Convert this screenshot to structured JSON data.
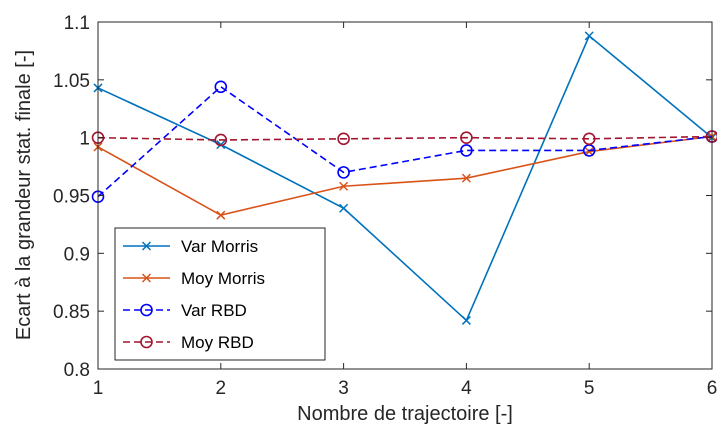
{
  "chart_data": {
    "type": "line",
    "xlabel": "Nombre de trajectoire [-]",
    "ylabel": "Ecart à la grandeur stat. finale [-]",
    "x": [
      1,
      2,
      3,
      4,
      5,
      6
    ],
    "xlim": [
      1,
      6
    ],
    "ylim": [
      0.8,
      1.1
    ],
    "xticks": [
      "1",
      "2",
      "3",
      "4",
      "5",
      "6"
    ],
    "yticks": [
      "0.8",
      "0.85",
      "0.9",
      "0.95",
      "1",
      "1.05",
      "1.1"
    ],
    "ytick_values": [
      0.8,
      0.85,
      0.9,
      0.95,
      1.0,
      1.05,
      1.1
    ],
    "grid": false,
    "legend_position": "bottom-left",
    "series": [
      {
        "name": "Var Morris",
        "values": [
          1.043,
          0.994,
          0.939,
          0.842,
          1.088,
          1.0
        ],
        "color": "#0072BD",
        "marker": "x",
        "dash": "solid"
      },
      {
        "name": "Moy Morris",
        "values": [
          0.992,
          0.933,
          0.958,
          0.965,
          0.988,
          1.001
        ],
        "color": "#D95319",
        "marker": "x",
        "dash": "solid"
      },
      {
        "name": "Var RBD",
        "values": [
          0.949,
          1.044,
          0.97,
          0.989,
          0.989,
          1.001
        ],
        "color": "#0000FF",
        "marker": "o",
        "dash": "dashed"
      },
      {
        "name": "Moy RBD",
        "values": [
          1.0,
          0.998,
          0.999,
          1.0,
          0.999,
          1.001
        ],
        "color": "#A2142F",
        "marker": "o",
        "dash": "dashed"
      }
    ]
  }
}
